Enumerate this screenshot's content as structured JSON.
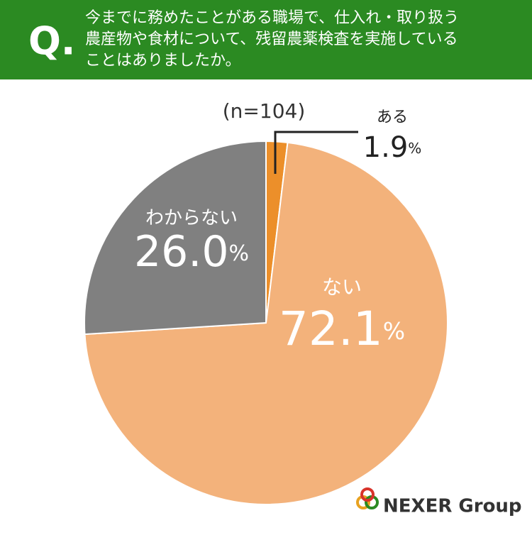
{
  "chart_data": {
    "type": "pie",
    "question_mark": "Q.",
    "title": [
      "今までに務めたことがある職場で、仕入れ・取り扱う",
      "農産物や食材について、残留農薬検査を実施している",
      "ことはありましたか。"
    ],
    "subtitle": "(n=104)",
    "categories": [
      "ある",
      "ない",
      "わからない"
    ],
    "values": [
      1.9,
      72.1,
      26.0
    ],
    "value_labels": [
      "1.9",
      "72.1",
      "26.0"
    ],
    "unit": "%",
    "colors": [
      "#ec8f2a",
      "#f3b27b",
      "#808080"
    ],
    "logo": "NEXER Group"
  }
}
